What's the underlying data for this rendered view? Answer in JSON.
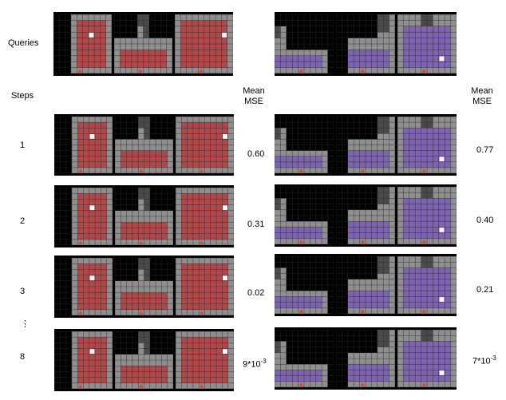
{
  "labels": {
    "queries": "Queries",
    "steps": "Steps",
    "mean_mse_left_1": "Mean",
    "mean_mse_left_2": "MSE",
    "mean_mse_right_1": "Mean",
    "mean_mse_right_2": "MSE",
    "ellipsis": "⋮"
  },
  "steps": [
    "1",
    "2",
    "3",
    "8"
  ],
  "left_mse": [
    "0.60",
    "0.31",
    "0.02",
    "9*10"
  ],
  "left_mse_exp": [
    "",
    "",
    "",
    "-3"
  ],
  "right_mse": [
    "0.77",
    "0.40",
    "0.21",
    "7*10"
  ],
  "right_mse_exp": [
    "",
    "",
    "",
    "-3"
  ],
  "colors": {
    "wall": "#8f8f8f",
    "floor_red": "#b0484a",
    "floor_purple": "#7d63b0",
    "grid": "#2c2c2c",
    "background": "#000000",
    "goal": "#ffffff",
    "agent": "#e4402c"
  }
}
